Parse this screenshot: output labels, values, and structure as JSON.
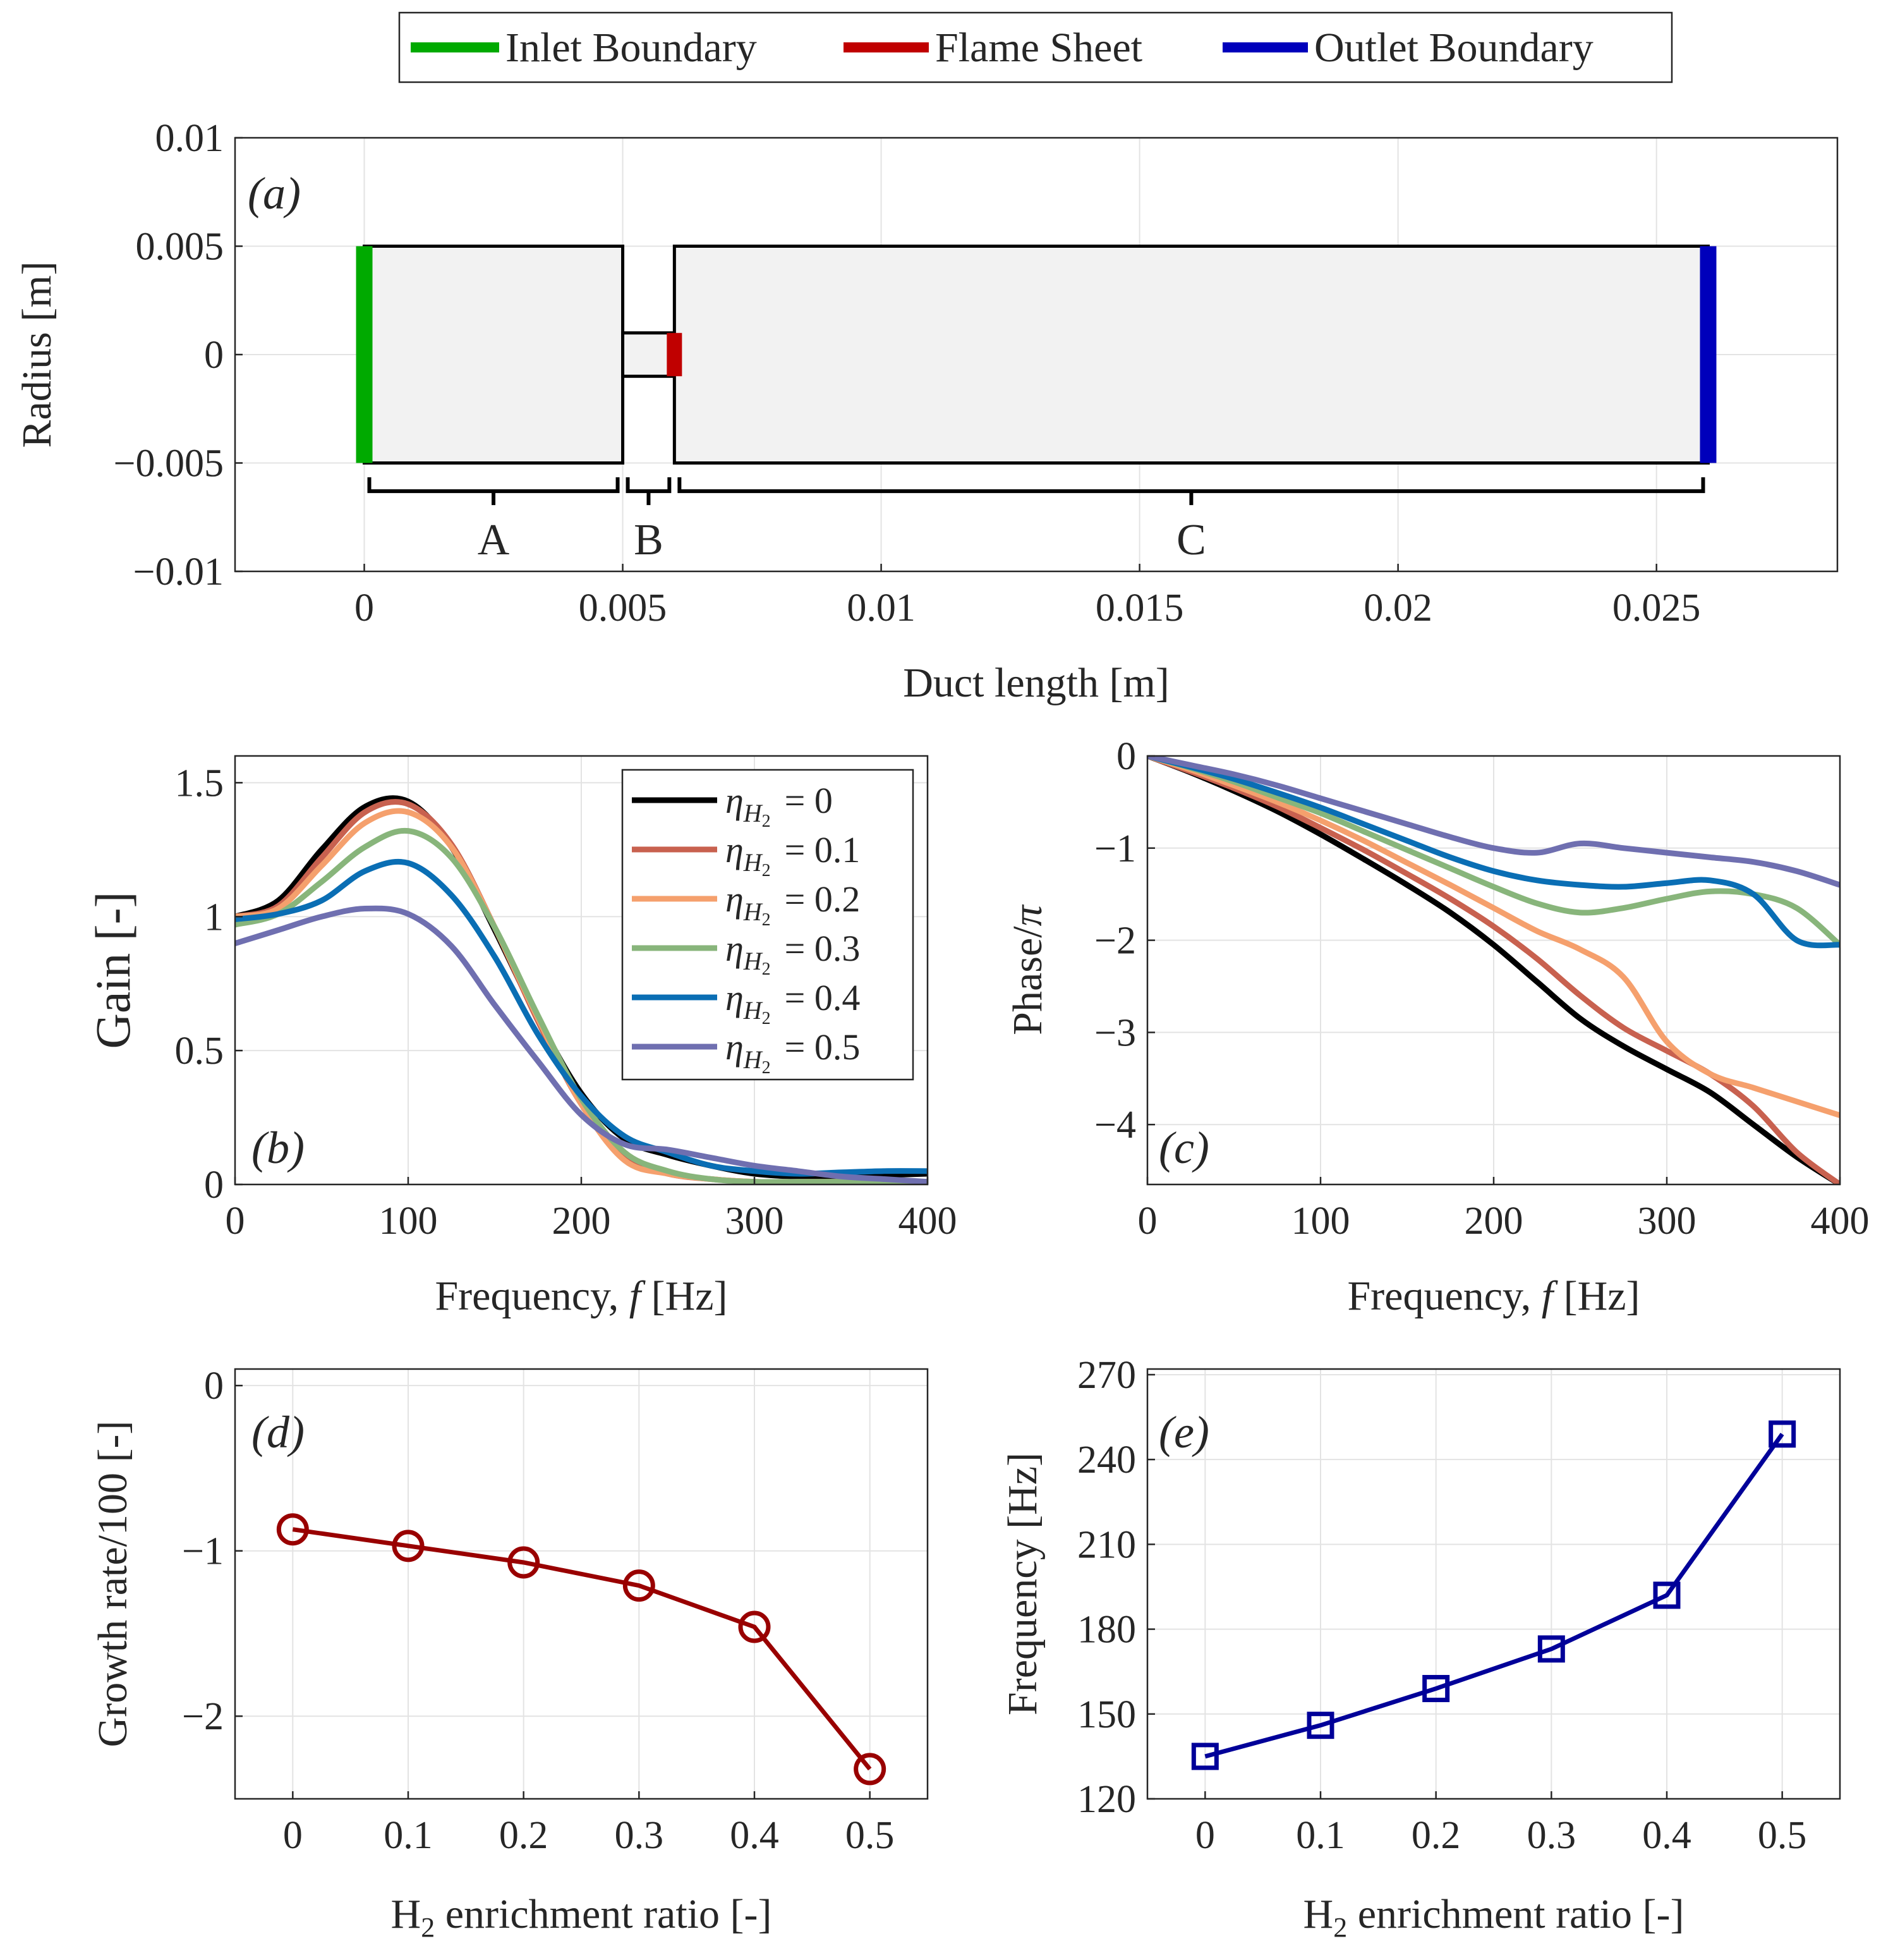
{
  "legend_top": {
    "items": [
      {
        "label": "Inlet Boundary",
        "color": "#00aa00"
      },
      {
        "label": "Flame Sheet",
        "color": "#c00000"
      },
      {
        "label": "Outlet Boundary",
        "color": "#0000bb"
      }
    ]
  },
  "chart_data": [
    {
      "id": "a",
      "type": "diagram",
      "panel_label": "(a)",
      "xlabel": "Duct length [m]",
      "ylabel": "Radius [m]",
      "xlim": [
        -0.0025,
        0.0285
      ],
      "ylim": [
        -0.01,
        0.01
      ],
      "xticks": [
        0,
        0.005,
        0.01,
        0.015,
        0.02,
        0.025
      ],
      "xtick_labels": [
        "0",
        "0.005",
        "0.01",
        "0.015",
        "0.02",
        "0.025"
      ],
      "yticks": [
        0.01,
        0.005,
        0,
        -0.005,
        -0.01
      ],
      "ytick_labels": [
        "0.01",
        "0.005",
        "0",
        "−0.005",
        "−0.01"
      ],
      "sections": [
        {
          "name": "A",
          "x": [
            0,
            0.005
          ],
          "r": 0.005
        },
        {
          "name": "B",
          "x": [
            0.005,
            0.006
          ],
          "r": 0.001
        },
        {
          "name": "C",
          "x": [
            0.006,
            0.026
          ],
          "r": 0.005
        }
      ],
      "inlet_x": 0,
      "flame_x": 0.006,
      "outlet_x": 0.026
    },
    {
      "id": "b",
      "type": "line",
      "panel_label": "(b)",
      "xlabel": "Frequency, f [Hz]",
      "ylabel": "Gain [-]",
      "xlim": [
        0,
        400
      ],
      "ylim": [
        0,
        1.6
      ],
      "xticks": [
        0,
        100,
        200,
        300,
        400
      ],
      "xtick_labels": [
        "0",
        "100",
        "200",
        "300",
        "400"
      ],
      "yticks": [
        0,
        0.5,
        1,
        1.5
      ],
      "ytick_labels": [
        "0",
        "0.5",
        "1",
        "1.5"
      ],
      "x": [
        0,
        25,
        50,
        75,
        100,
        125,
        150,
        175,
        200,
        225,
        250,
        275,
        300,
        325,
        350,
        375,
        400
      ],
      "series": [
        {
          "name": "ηH2 = 0",
          "color": "#000000",
          "values": [
            1.0,
            1.06,
            1.25,
            1.41,
            1.43,
            1.26,
            0.95,
            0.62,
            0.34,
            0.17,
            0.11,
            0.07,
            0.04,
            0.03,
            0.03,
            0.035,
            0.04
          ]
        },
        {
          "name": "ηH2 = 0.1",
          "color": "#c8614f",
          "values": [
            1.0,
            1.04,
            1.22,
            1.39,
            1.42,
            1.27,
            0.96,
            0.61,
            0.3,
            0.1,
            0.04,
            0.02,
            0.01,
            0.01,
            0.01,
            0.01,
            0.01
          ]
        },
        {
          "name": "ηH2 = 0.2",
          "color": "#f5a06d",
          "values": [
            1.0,
            1.03,
            1.19,
            1.35,
            1.39,
            1.26,
            0.96,
            0.62,
            0.3,
            0.09,
            0.04,
            0.02,
            0.01,
            0.01,
            0.01,
            0.01,
            0.01
          ]
        },
        {
          "name": "ηH2 = 0.3",
          "color": "#88b57b",
          "values": [
            0.97,
            1.01,
            1.13,
            1.26,
            1.32,
            1.22,
            0.96,
            0.63,
            0.32,
            0.12,
            0.05,
            0.02,
            0.01,
            0.01,
            0.01,
            0.01,
            0.01
          ]
        },
        {
          "name": "ηH2 = 0.4",
          "color": "#0a6eb4",
          "values": [
            0.99,
            1.01,
            1.06,
            1.17,
            1.2,
            1.08,
            0.85,
            0.56,
            0.33,
            0.18,
            0.12,
            0.07,
            0.05,
            0.04,
            0.045,
            0.05,
            0.05
          ]
        },
        {
          "name": "ηH2 = 0.5",
          "color": "#6f6fb0",
          "values": [
            0.9,
            0.95,
            1.0,
            1.03,
            1.01,
            0.89,
            0.67,
            0.46,
            0.26,
            0.15,
            0.13,
            0.1,
            0.07,
            0.05,
            0.03,
            0.02,
            0.01
          ]
        }
      ]
    },
    {
      "id": "c",
      "type": "line",
      "panel_label": "(c)",
      "xlabel": "Frequency, f [Hz]",
      "ylabel": "Phase/π",
      "xlim": [
        0,
        400
      ],
      "ylim": [
        -4.65,
        0
      ],
      "xticks": [
        0,
        100,
        200,
        300,
        400
      ],
      "xtick_labels": [
        "0",
        "100",
        "200",
        "300",
        "400"
      ],
      "yticks": [
        0,
        -1,
        -2,
        -3,
        -4
      ],
      "ytick_labels": [
        "0",
        "−1",
        "−2",
        "−3",
        "−4"
      ],
      "x": [
        0,
        25,
        50,
        75,
        100,
        125,
        150,
        175,
        200,
        225,
        250,
        275,
        300,
        325,
        350,
        375,
        400
      ],
      "series": [
        {
          "name": "ηH2 = 0",
          "color": "#000000",
          "values": [
            0,
            -0.18,
            -0.38,
            -0.6,
            -0.85,
            -1.12,
            -1.4,
            -1.7,
            -2.05,
            -2.45,
            -2.85,
            -3.15,
            -3.4,
            -3.65,
            -4.0,
            -4.35,
            -4.65
          ]
        },
        {
          "name": "ηH2 = 0.1",
          "color": "#c8614f",
          "values": [
            0,
            -0.17,
            -0.35,
            -0.55,
            -0.78,
            -1.02,
            -1.28,
            -1.55,
            -1.85,
            -2.2,
            -2.6,
            -2.95,
            -3.2,
            -3.45,
            -3.8,
            -4.3,
            -4.65
          ]
        },
        {
          "name": "ηH2 = 0.2",
          "color": "#f5a06d",
          "values": [
            0,
            -0.15,
            -0.32,
            -0.5,
            -0.7,
            -0.92,
            -1.16,
            -1.4,
            -1.65,
            -1.9,
            -2.1,
            -2.4,
            -3.1,
            -3.45,
            -3.6,
            -3.75,
            -3.9
          ]
        },
        {
          "name": "ηH2 = 0.3",
          "color": "#88b57b",
          "values": [
            0,
            -0.13,
            -0.28,
            -0.45,
            -0.62,
            -0.82,
            -1.02,
            -1.22,
            -1.42,
            -1.6,
            -1.7,
            -1.65,
            -1.55,
            -1.47,
            -1.5,
            -1.65,
            -2.05
          ]
        },
        {
          "name": "ηH2 = 0.4",
          "color": "#0a6eb4",
          "values": [
            0,
            -0.12,
            -0.25,
            -0.4,
            -0.56,
            -0.74,
            -0.92,
            -1.1,
            -1.25,
            -1.35,
            -1.4,
            -1.42,
            -1.38,
            -1.35,
            -1.5,
            -2.0,
            -2.05
          ]
        },
        {
          "name": "ηH2 = 0.5",
          "color": "#6f6fb0",
          "values": [
            0,
            -0.1,
            -0.2,
            -0.32,
            -0.46,
            -0.6,
            -0.74,
            -0.88,
            -1.0,
            -1.05,
            -0.95,
            -1.0,
            -1.05,
            -1.1,
            -1.15,
            -1.25,
            -1.4
          ]
        }
      ]
    },
    {
      "id": "d",
      "type": "line",
      "panel_label": "(d)",
      "xlabel": "H2 enrichment ratio [-]",
      "ylabel": "Growth rate/100 [-]",
      "xlim": [
        -0.05,
        0.55
      ],
      "ylim": [
        -2.5,
        0.1
      ],
      "xticks": [
        0,
        0.1,
        0.2,
        0.3,
        0.4,
        0.5
      ],
      "xtick_labels": [
        "0",
        "0.1",
        "0.2",
        "0.3",
        "0.4",
        "0.5"
      ],
      "yticks": [
        0,
        -1,
        -2
      ],
      "ytick_labels": [
        "0",
        "−1",
        "−2"
      ],
      "x": [
        0,
        0.1,
        0.2,
        0.3,
        0.4,
        0.5
      ],
      "series": [
        {
          "name": "Growth rate",
          "color": "#990000",
          "marker": "circle",
          "values": [
            -0.87,
            -0.97,
            -1.07,
            -1.21,
            -1.46,
            -2.32
          ]
        }
      ]
    },
    {
      "id": "e",
      "type": "line",
      "panel_label": "(e)",
      "xlabel": "H2 enrichment ratio [-]",
      "ylabel": "Frequency [Hz]",
      "xlim": [
        -0.05,
        0.55
      ],
      "ylim": [
        120,
        272
      ],
      "xticks": [
        0,
        0.1,
        0.2,
        0.3,
        0.4,
        0.5
      ],
      "xtick_labels": [
        "0",
        "0.1",
        "0.2",
        "0.3",
        "0.4",
        "0.5"
      ],
      "yticks": [
        120,
        150,
        180,
        210,
        240,
        270
      ],
      "ytick_labels": [
        "120",
        "150",
        "180",
        "210",
        "240",
        "270"
      ],
      "x": [
        0,
        0.1,
        0.2,
        0.3,
        0.4,
        0.5
      ],
      "series": [
        {
          "name": "Frequency",
          "color": "#000099",
          "marker": "square",
          "values": [
            135,
            146,
            159,
            173,
            192,
            249
          ]
        }
      ]
    }
  ],
  "legend_b": {
    "entries": [
      {
        "symbol": "η",
        "sub": "H",
        "subsub": "2",
        "value": "= 0",
        "color": "#000000"
      },
      {
        "symbol": "η",
        "sub": "H",
        "subsub": "2",
        "value": "= 0.1",
        "color": "#c8614f"
      },
      {
        "symbol": "η",
        "sub": "H",
        "subsub": "2",
        "value": "= 0.2",
        "color": "#f5a06d"
      },
      {
        "symbol": "η",
        "sub": "H",
        "subsub": "2",
        "value": "= 0.3",
        "color": "#88b57b"
      },
      {
        "symbol": "η",
        "sub": "H",
        "subsub": "2",
        "value": "= 0.4",
        "color": "#0a6eb4"
      },
      {
        "symbol": "η",
        "sub": "H",
        "subsub": "2",
        "value": "= 0.5",
        "color": "#6f6fb0"
      }
    ]
  }
}
